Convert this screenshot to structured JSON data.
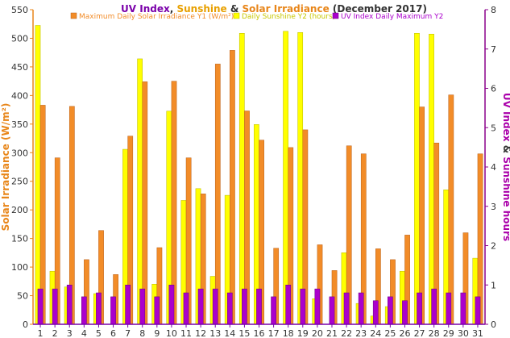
{
  "chart_data": {
    "type": "bar",
    "title_parts": [
      {
        "text": "UV Index",
        "color": "#7a00aa"
      },
      {
        "text": ", ",
        "color": "#333333"
      },
      {
        "text": "Sunshine",
        "color": "#e8a000"
      },
      {
        "text": " & ",
        "color": "#333333"
      },
      {
        "text": "Solar Irradiance",
        "color": "#e8861a"
      },
      {
        "text": " (December 2017)",
        "color": "#333333"
      }
    ],
    "ylabel_left": "Solar Irradiance (W/m²)",
    "ylabel_right_parts": [
      {
        "text": "UV Index",
        "color": "#aa00aa"
      },
      {
        "text": " & ",
        "color": "#333333"
      },
      {
        "text": "Sunshine hours",
        "color": "#aa00aa"
      }
    ],
    "categories": [
      "1",
      "2",
      "3",
      "4",
      "5",
      "6",
      "7",
      "8",
      "9",
      "10",
      "11",
      "12",
      "13",
      "14",
      "15",
      "16",
      "17",
      "18",
      "19",
      "20",
      "21",
      "22",
      "23",
      "24",
      "25",
      "26",
      "27",
      "28",
      "29",
      "30",
      "31"
    ],
    "ylim_left": [
      0,
      550
    ],
    "ylim_right": [
      0,
      8
    ],
    "yticks_left": [
      "0",
      "50",
      "100",
      "150",
      "200",
      "250",
      "300",
      "350",
      "400",
      "450",
      "500",
      "550"
    ],
    "yticks_right": [
      "0",
      "1",
      "2",
      "3",
      "4",
      "5",
      "6",
      "7",
      "8"
    ],
    "grid": false,
    "legend_position": "top",
    "series": [
      {
        "name": "Daily Sunshine Y2 (hours)",
        "axis": "right",
        "color": "#ffff00",
        "stroke": "#b8b800",
        "values": [
          7.6,
          1.35,
          0.95,
          0.0,
          0.78,
          0.0,
          4.45,
          6.75,
          1.02,
          5.42,
          3.15,
          3.45,
          1.22,
          3.28,
          7.4,
          5.08,
          0.0,
          7.45,
          7.42,
          0.65,
          0.0,
          1.82,
          0.53,
          0.21,
          0.45,
          1.35,
          7.4,
          7.38,
          3.42,
          0.0,
          1.68
        ]
      },
      {
        "name": "Maximum Daily Solar Irradiance Y1 (W/m²)",
        "axis": "left",
        "color": "#f28c28",
        "stroke": "#b8601a",
        "values": [
          383,
          291,
          381,
          113,
          164,
          87,
          329,
          424,
          134,
          425,
          291,
          228,
          455,
          479,
          373,
          322,
          133,
          309,
          340,
          139,
          94,
          312,
          298,
          132,
          113,
          156,
          380,
          317,
          401,
          160,
          298
        ]
      },
      {
        "name": "UV Index Daily Maximum Y2",
        "axis": "right",
        "color": "#aa00cc",
        "stroke": "#6a0080",
        "values": [
          0.9,
          0.9,
          1.0,
          0.7,
          0.8,
          0.7,
          1.0,
          0.9,
          0.7,
          1.0,
          0.8,
          0.9,
          0.9,
          0.8,
          0.9,
          0.9,
          0.7,
          1.0,
          0.9,
          0.9,
          0.7,
          0.8,
          0.8,
          0.6,
          0.7,
          0.6,
          0.8,
          0.9,
          0.8,
          0.8,
          0.7
        ]
      }
    ]
  },
  "colors": {
    "left_axis": "#e8861a",
    "right_axis": "#8b008b",
    "x_axis": "#7a00aa"
  }
}
